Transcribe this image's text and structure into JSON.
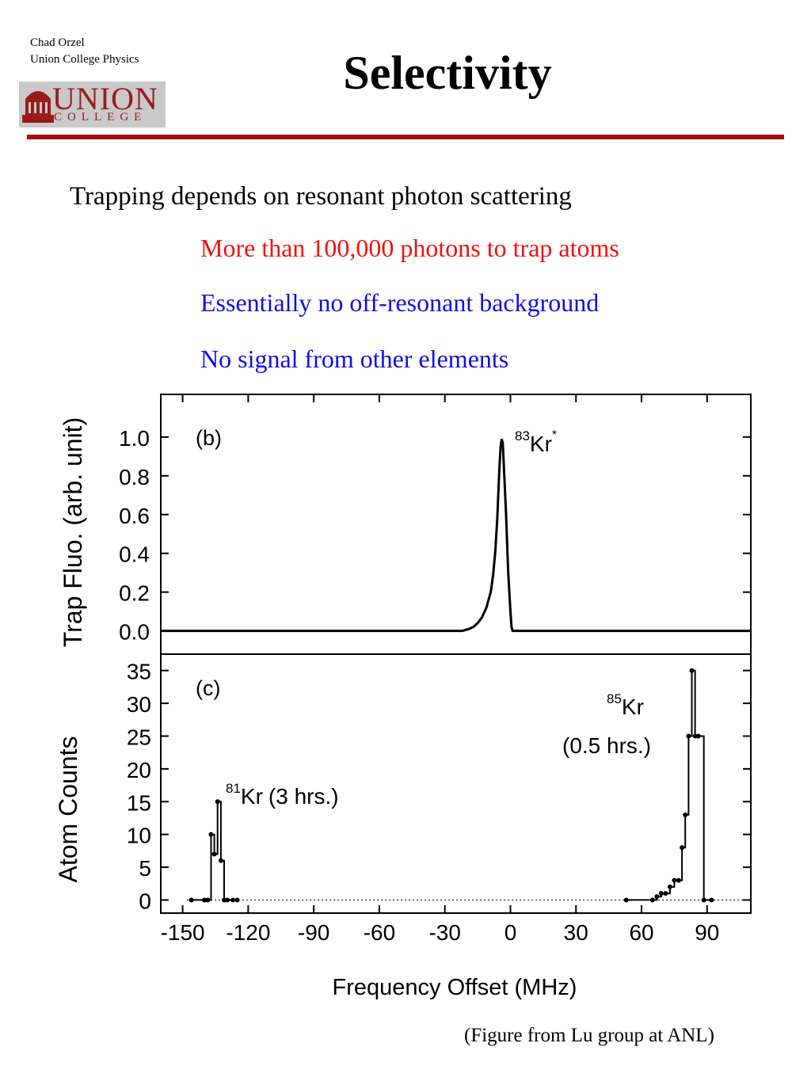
{
  "header": {
    "author_name": "Chad Orzel",
    "author_affiliation": "Union College Physics",
    "logo_main": "UNION",
    "logo_sub": "COLLEGE"
  },
  "slide": {
    "title": "Selectivity",
    "lead": "Trapping depends on resonant photon scattering",
    "bullet_1": "More than 100,000 photons to trap atoms",
    "bullet_2": "Essentially no off-resonant background",
    "bullet_3": "No signal from other elements",
    "credit": "(Figure from Lu group at ANL)"
  },
  "colors": {
    "rule": "#a31111",
    "bullet_red": "#ee1111",
    "bullet_blue": "#1010dd",
    "logo": "#9b1b1b"
  },
  "chart_data": [
    {
      "type": "line",
      "panel_label": "(b)",
      "ylabel": "Trap Fluo. (arb. unit)",
      "xlim": [
        -160,
        110
      ],
      "ylim": [
        -0.12,
        1.22
      ],
      "y_ticks": [
        "0.0",
        "0.2",
        "0.4",
        "0.6",
        "0.8",
        "1.0"
      ],
      "annotation": {
        "isotope": "83",
        "element": "Kr",
        "mark": "*"
      },
      "x": [
        -160,
        -22,
        -19,
        -17,
        -15,
        -13,
        -11,
        -9,
        -8,
        -7,
        -6,
        -5.5,
        -5,
        -4.5,
        -4,
        -3.5,
        -3,
        -2,
        -1,
        0,
        0.5,
        1,
        2,
        110
      ],
      "y": [
        0,
        0,
        0.01,
        0.02,
        0.04,
        0.07,
        0.12,
        0.2,
        0.28,
        0.4,
        0.58,
        0.72,
        0.85,
        0.95,
        0.99,
        0.97,
        0.85,
        0.6,
        0.3,
        0.1,
        0.02,
        0,
        0,
        0
      ]
    },
    {
      "type": "step",
      "panel_label": "(c)",
      "ylabel": "Atom Counts",
      "xlabel": "Frequency Offset (MHz)",
      "xlim": [
        -160,
        110
      ],
      "ylim": [
        -2,
        37.5
      ],
      "x_ticks": [
        "-150",
        "-120",
        "-90",
        "-60",
        "-30",
        "0",
        "30",
        "60",
        "90"
      ],
      "y_ticks": [
        "0",
        "5",
        "10",
        "15",
        "20",
        "25",
        "30",
        "35"
      ],
      "annotations": [
        {
          "isotope": "81",
          "element": "Kr",
          "note": "(3 hrs.)"
        },
        {
          "isotope": "85",
          "element": "Kr",
          "note": "(0.5 hrs.)"
        }
      ],
      "series": [
        {
          "x": [
            -146,
            -140,
            -138.5,
            -137,
            -135.5,
            -134,
            -132.5,
            -131,
            -129.5,
            -127,
            -125
          ],
          "y": [
            0,
            0,
            0,
            10,
            7,
            15,
            6,
            0,
            0,
            0,
            0
          ]
        },
        {
          "x": [
            53,
            65,
            67,
            69,
            71,
            73,
            75,
            77,
            78.5,
            80,
            81.5,
            83,
            84.5,
            86,
            88.5,
            92
          ],
          "y": [
            0,
            0,
            0.5,
            1,
            1,
            2,
            3,
            3,
            8,
            13,
            25,
            35,
            25,
            25,
            0,
            0
          ]
        }
      ]
    }
  ]
}
